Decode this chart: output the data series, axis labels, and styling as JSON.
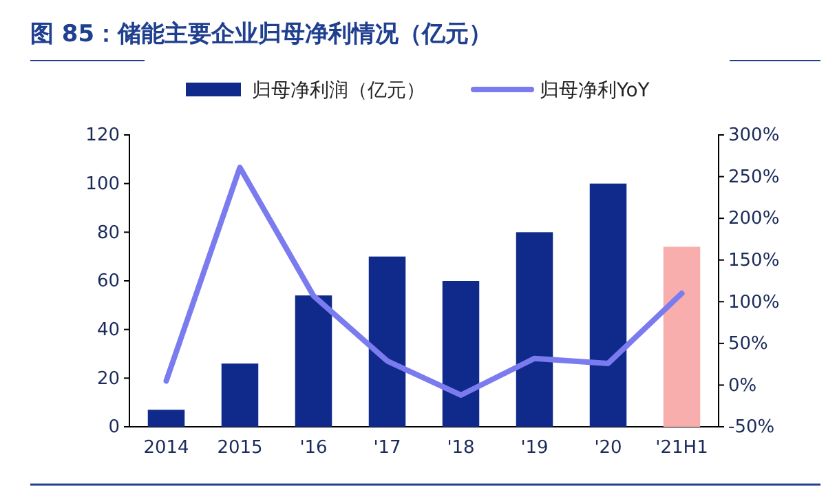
{
  "chart_data": {
    "type": "bar",
    "title": "图 85：储能主要企业归母净利情况（亿元）",
    "categories": [
      "2014",
      "2015",
      "'16",
      "'17",
      "'18",
      "'19",
      "'20",
      "'21H1"
    ],
    "series": [
      {
        "name": "归母净利润（亿元）",
        "color": "#0f2a8a",
        "colors": [
          "#0f2a8a",
          "#0f2a8a",
          "#0f2a8a",
          "#0f2a8a",
          "#0f2a8a",
          "#0f2a8a",
          "#0f2a8a",
          "#f9aeae"
        ],
        "values": [
          7,
          26,
          54,
          70,
          60,
          80,
          100,
          74
        ]
      },
      {
        "name": "归母净利YoY",
        "type": "line",
        "axis": "y2",
        "color": "#7b7bf0",
        "values": [
          5,
          261,
          107,
          29,
          -12,
          32,
          26,
          110
        ]
      }
    ],
    "ylim": [
      0,
      120
    ],
    "yticks": [
      0,
      20,
      40,
      60,
      80,
      100,
      120
    ],
    "y2lim": [
      -50,
      300
    ],
    "y2ticks": [
      {
        "value": -50,
        "label": "-50%"
      },
      {
        "value": 0,
        "label": "0%"
      },
      {
        "value": 50,
        "label": "50%"
      },
      {
        "value": 100,
        "label": "100%"
      },
      {
        "value": 150,
        "label": "150%"
      },
      {
        "value": 200,
        "label": "200%"
      },
      {
        "value": 250,
        "label": "250%"
      },
      {
        "value": 300,
        "label": "300%"
      }
    ],
    "legend": "top",
    "grid": false,
    "marker": "none"
  }
}
